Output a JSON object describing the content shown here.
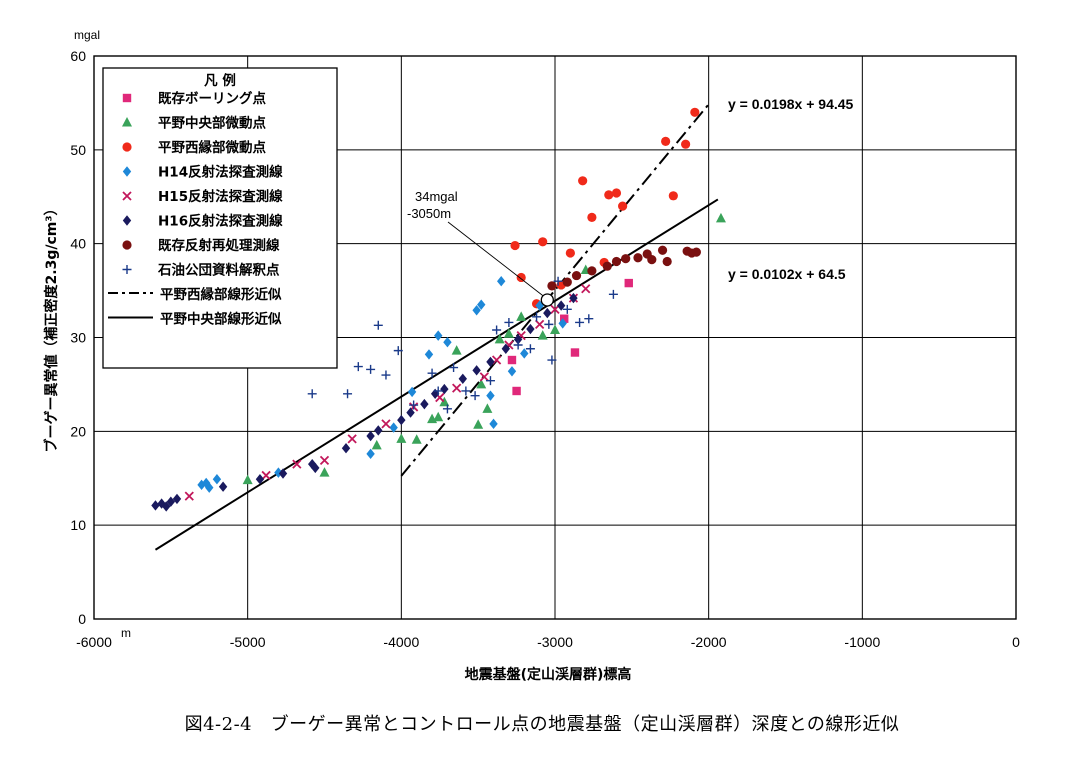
{
  "caption": "図4-2-4　ブーゲー異常とコントロール点の地震基盤（定山渓層群）深度との線形近似",
  "chart_data": {
    "type": "scatter",
    "title": "",
    "xlabel": "地震基盤(定山渓層群)標高",
    "ylabel": "ブーゲー異常値（補正密度2.3g/cm³）",
    "x_unit": "m",
    "y_unit": "mgal",
    "xlim": [
      -6000,
      0
    ],
    "ylim": [
      0,
      60
    ],
    "x_ticks": [
      "-6000",
      "-5000",
      "-4000",
      "-3000",
      "-2000",
      "-1000",
      "0"
    ],
    "y_ticks": [
      "0",
      "10",
      "20",
      "30",
      "40",
      "50",
      "60"
    ],
    "grid": true,
    "legend_title": "凡 例",
    "legend_position": "top-left",
    "series": [
      {
        "name": "既存ボーリング点",
        "marker": "square",
        "color": "#e0287a",
        "points": [
          [
            -3280,
            27.6
          ],
          [
            -3250,
            24.3
          ],
          [
            -2940,
            32.0
          ],
          [
            -2870,
            28.4
          ],
          [
            -2520,
            35.8
          ]
        ]
      },
      {
        "name": "平野中央部微動点",
        "marker": "triangle",
        "color": "#3aa35a",
        "points": [
          [
            -5000,
            14.8
          ],
          [
            -4500,
            15.6
          ],
          [
            -4160,
            18.5
          ],
          [
            -4000,
            19.2
          ],
          [
            -3900,
            19.1
          ],
          [
            -3800,
            21.3
          ],
          [
            -3760,
            21.5
          ],
          [
            -3720,
            23.1
          ],
          [
            -3640,
            28.6
          ],
          [
            -3500,
            20.7
          ],
          [
            -3480,
            25.0
          ],
          [
            -3440,
            22.4
          ],
          [
            -3360,
            29.8
          ],
          [
            -3300,
            30.4
          ],
          [
            -3220,
            32.2
          ],
          [
            -3080,
            30.2
          ],
          [
            -3000,
            30.8
          ],
          [
            -2800,
            37.2
          ],
          [
            -1920,
            42.7
          ]
        ]
      },
      {
        "name": "平野西縁部微動点",
        "marker": "circle",
        "color": "#f02a1a",
        "points": [
          [
            -3260,
            39.8
          ],
          [
            -3220,
            36.4
          ],
          [
            -3120,
            33.6
          ],
          [
            -3080,
            40.2
          ],
          [
            -2960,
            35.6
          ],
          [
            -2900,
            39.0
          ],
          [
            -2820,
            46.7
          ],
          [
            -2760,
            42.8
          ],
          [
            -2680,
            38.0
          ],
          [
            -2650,
            45.2
          ],
          [
            -2600,
            45.4
          ],
          [
            -2560,
            44.0
          ],
          [
            -2280,
            50.9
          ],
          [
            -2230,
            45.1
          ],
          [
            -2150,
            50.6
          ],
          [
            -2090,
            54.0
          ]
        ]
      },
      {
        "name": "H14反射法探査測線",
        "marker": "diamond",
        "color": "#1e88d8",
        "points": [
          [
            -5300,
            14.3
          ],
          [
            -5270,
            14.5
          ],
          [
            -5250,
            14.0
          ],
          [
            -5200,
            14.9
          ],
          [
            -4800,
            15.6
          ],
          [
            -4200,
            17.6
          ],
          [
            -4050,
            20.4
          ],
          [
            -3930,
            24.2
          ],
          [
            -3820,
            28.2
          ],
          [
            -3760,
            30.2
          ],
          [
            -3700,
            29.5
          ],
          [
            -3510,
            32.9
          ],
          [
            -3480,
            33.5
          ],
          [
            -3420,
            23.8
          ],
          [
            -3400,
            20.8
          ],
          [
            -3350,
            36.0
          ],
          [
            -3280,
            26.4
          ],
          [
            -3200,
            28.3
          ],
          [
            -3100,
            33.4
          ],
          [
            -2950,
            31.5
          ]
        ]
      },
      {
        "name": "H15反射法探査測線",
        "marker": "x",
        "color": "#c2185b",
        "points": [
          [
            -5380,
            13.1
          ],
          [
            -4880,
            15.3
          ],
          [
            -4680,
            16.5
          ],
          [
            -4500,
            16.9
          ],
          [
            -4320,
            19.2
          ],
          [
            -4100,
            20.8
          ],
          [
            -3920,
            22.6
          ],
          [
            -3750,
            23.6
          ],
          [
            -3640,
            24.6
          ],
          [
            -3460,
            25.8
          ],
          [
            -3380,
            27.6
          ],
          [
            -3300,
            29.2
          ],
          [
            -3220,
            30.2
          ],
          [
            -3100,
            31.4
          ],
          [
            -3000,
            33.0
          ],
          [
            -2880,
            34.2
          ],
          [
            -2800,
            35.2
          ]
        ]
      },
      {
        "name": "H16反射法探査測線",
        "marker": "diamond",
        "color": "#1a1a5e",
        "points": [
          [
            -5600,
            12.1
          ],
          [
            -5560,
            12.3
          ],
          [
            -5530,
            12.0
          ],
          [
            -5500,
            12.5
          ],
          [
            -5460,
            12.8
          ],
          [
            -5160,
            14.1
          ],
          [
            -4920,
            14.9
          ],
          [
            -4770,
            15.5
          ],
          [
            -4580,
            16.5
          ],
          [
            -4560,
            16.1
          ],
          [
            -4360,
            18.2
          ],
          [
            -4200,
            19.5
          ],
          [
            -4150,
            20.1
          ],
          [
            -4000,
            21.2
          ],
          [
            -3940,
            22.0
          ],
          [
            -3850,
            22.9
          ],
          [
            -3780,
            24.0
          ],
          [
            -3720,
            24.5
          ],
          [
            -3600,
            25.6
          ],
          [
            -3510,
            26.5
          ],
          [
            -3420,
            27.4
          ],
          [
            -3320,
            28.8
          ],
          [
            -3240,
            29.8
          ],
          [
            -3160,
            30.9
          ],
          [
            -3050,
            32.6
          ],
          [
            -2960,
            33.4
          ],
          [
            -2880,
            34.2
          ]
        ]
      },
      {
        "name": "既存反射再処理測線",
        "marker": "circle",
        "color": "#7a1010",
        "points": [
          [
            -3020,
            35.5
          ],
          [
            -2920,
            35.9
          ],
          [
            -2860,
            36.6
          ],
          [
            -2760,
            37.1
          ],
          [
            -2660,
            37.6
          ],
          [
            -2600,
            38.1
          ],
          [
            -2540,
            38.4
          ],
          [
            -2460,
            38.5
          ],
          [
            -2400,
            38.9
          ],
          [
            -2370,
            38.3
          ],
          [
            -2300,
            39.3
          ],
          [
            -2270,
            38.1
          ],
          [
            -2140,
            39.2
          ],
          [
            -2110,
            39.0
          ],
          [
            -2080,
            39.1
          ]
        ]
      },
      {
        "name": "石油公団資料解釈点",
        "marker": "plus",
        "color": "#1a3a8a",
        "points": [
          [
            -4580,
            24.0
          ],
          [
            -4350,
            24.0
          ],
          [
            -4280,
            26.9
          ],
          [
            -4200,
            26.6
          ],
          [
            -4150,
            31.3
          ],
          [
            -4100,
            26.0
          ],
          [
            -4020,
            28.6
          ],
          [
            -3920,
            22.8
          ],
          [
            -3800,
            26.2
          ],
          [
            -3760,
            24.3
          ],
          [
            -3700,
            22.4
          ],
          [
            -3660,
            26.8
          ],
          [
            -3580,
            24.3
          ],
          [
            -3520,
            23.8
          ],
          [
            -3420,
            25.4
          ],
          [
            -3380,
            30.8
          ],
          [
            -3300,
            31.6
          ],
          [
            -3240,
            29.2
          ],
          [
            -3160,
            28.8
          ],
          [
            -3120,
            32.2
          ],
          [
            -3040,
            31.4
          ],
          [
            -2980,
            36.0
          ],
          [
            -2920,
            33.0
          ],
          [
            -2840,
            31.6
          ],
          [
            -2780,
            32.0
          ],
          [
            -2620,
            34.6
          ],
          [
            -3020,
            27.6
          ]
        ]
      }
    ],
    "fits": [
      {
        "name": "平野西縁部線形近似",
        "style": "dash-dot",
        "equation": "y = 0.0198x + 94.45",
        "slope": 0.0198,
        "intercept": 94.45,
        "x_range": [
          -4000,
          -2000
        ]
      },
      {
        "name": "平野中央部線形近似",
        "style": "solid",
        "equation": "y = 0.0102x + 64.5",
        "slope": 0.0102,
        "intercept": 64.5,
        "x_range": [
          -5600,
          -1940
        ]
      }
    ],
    "annotation": {
      "text_line1": "34mgal",
      "text_line2": "-3050m",
      "point": [
        -3050,
        34
      ]
    }
  }
}
